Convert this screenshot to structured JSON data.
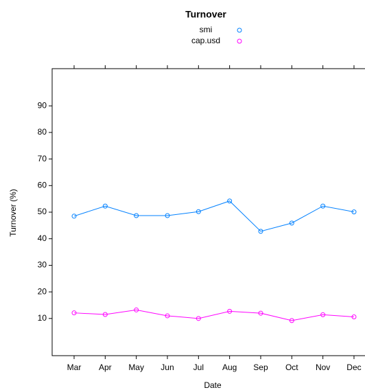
{
  "chart_data": {
    "type": "line",
    "title": "Turnover",
    "x_label": "Date",
    "y_label": "Turnover (%)",
    "categories": [
      "Mar",
      "Apr",
      "May",
      "Jun",
      "Jul",
      "Aug",
      "Sep",
      "Oct",
      "Nov",
      "Dec"
    ],
    "series": [
      {
        "name": "smi",
        "color": "#0080ff",
        "values": [
          48.5,
          52.3,
          48.7,
          48.7,
          50.2,
          54.2,
          42.8,
          45.9,
          52.3,
          50.1
        ]
      },
      {
        "name": "cap.usd",
        "color": "#ff00ff",
        "values": [
          12.1,
          11.5,
          13.2,
          11.0,
          10.0,
          12.7,
          12.0,
          9.2,
          11.4,
          10.6
        ]
      }
    ],
    "ylim": [
      -4,
      104
    ],
    "yticks": [
      10,
      20,
      30,
      40,
      50,
      60,
      70,
      80,
      90
    ],
    "grid": false
  }
}
